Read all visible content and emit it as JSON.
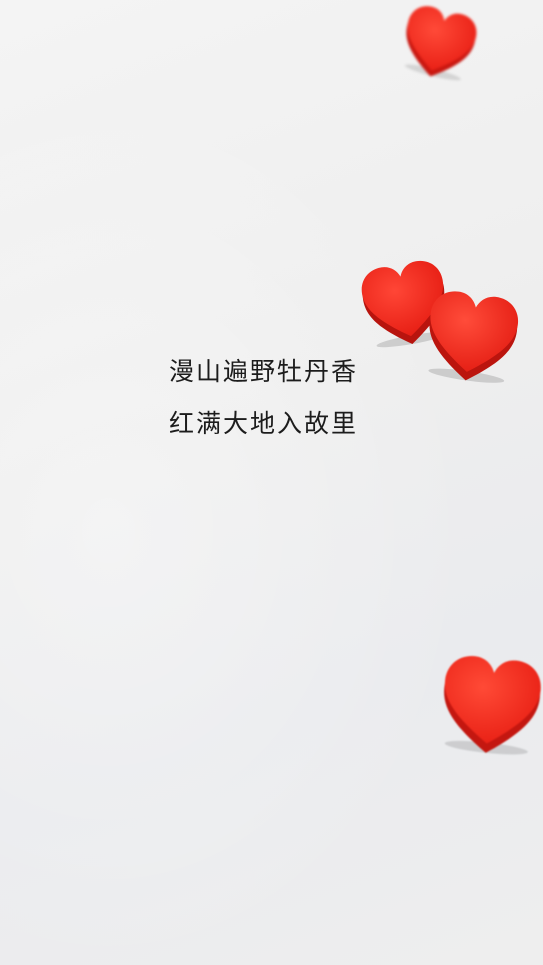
{
  "poem": {
    "line1": "漫山遍野牡丹香",
    "line2": "红满大地入故里"
  },
  "colors": {
    "background": "#eeeeee",
    "heart_fill": "#f22a1c",
    "heart_side": "#c91710",
    "text": "#1c1c1c"
  },
  "decorations": {
    "hearts": [
      {
        "icon": "heart-icon",
        "count_visible": 4
      }
    ]
  }
}
